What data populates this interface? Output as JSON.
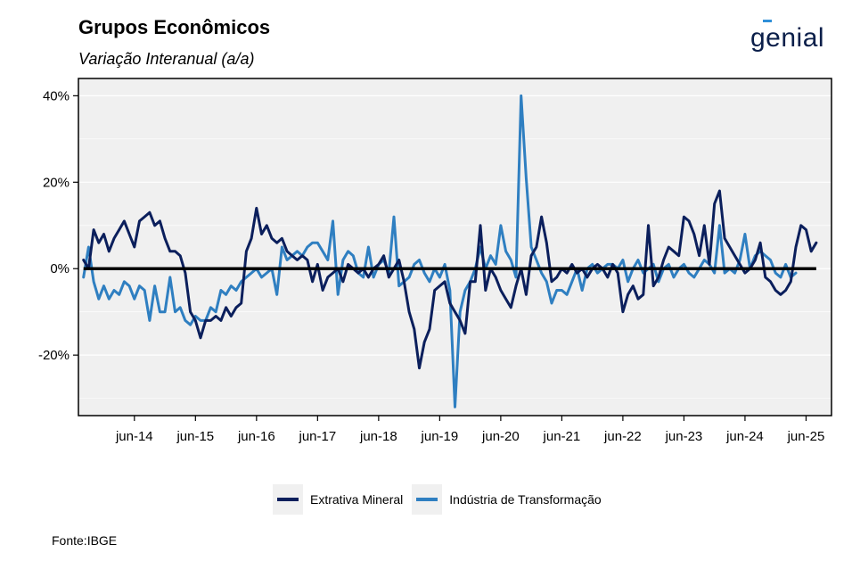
{
  "header": {
    "title": "Grupos Econômicos",
    "subtitle": "Variação Interanual (a/a)",
    "logo_text": "genial"
  },
  "footer": {
    "source": "Fonte:IBGE"
  },
  "colors": {
    "extrativa": "#0b1f5c",
    "industria": "#2f7fc1",
    "zero_line": "#000000",
    "panel": "#f0f0f0",
    "brand_accent": "#2f8fd8"
  },
  "chart_data": {
    "type": "line",
    "title": "Grupos Econômicos",
    "subtitle": "Variação Interanual (a/a)",
    "xlabel": "",
    "ylabel": "",
    "x_tick_labels": [
      "jun-14",
      "jun-15",
      "jun-16",
      "jun-17",
      "jun-18",
      "jun-19",
      "jun-20",
      "jun-21",
      "jun-22",
      "jun-23",
      "jun-24",
      "jun-25"
    ],
    "y_tick_labels": [
      "40%",
      "20%",
      "0%",
      "-20%"
    ],
    "y_ticks": [
      40,
      20,
      0,
      -20
    ],
    "ylim": [
      -34,
      44
    ],
    "x_range": [
      "2013-07",
      "2025-11"
    ],
    "grid": true,
    "legend_position": "bottom",
    "series": [
      {
        "name": "Extrativa Mineral",
        "color": "#0b1f5c",
        "start": "2013-08",
        "values": [
          2,
          0,
          9,
          6,
          8,
          4,
          7,
          9,
          11,
          8,
          5,
          11,
          12,
          13,
          10,
          11,
          7,
          4,
          4,
          3,
          -1,
          -10,
          -12,
          -16,
          -12,
          -12,
          -11,
          -12,
          -9,
          -11,
          -9,
          -8,
          4,
          7,
          14,
          8,
          10,
          7,
          6,
          7,
          4,
          3,
          2,
          3,
          2,
          -3,
          1,
          -5,
          -2,
          -1,
          0,
          -3,
          1,
          0,
          -1,
          0,
          -2,
          0,
          1,
          3,
          -2,
          0,
          2,
          -3,
          -10,
          -14,
          -23,
          -17,
          -14,
          -5,
          -4,
          -3,
          -8,
          -10,
          -12,
          -15,
          -3,
          -3,
          10,
          -5,
          0,
          -2,
          -5,
          -7,
          -9,
          -4,
          0,
          -6,
          3,
          5,
          12,
          6,
          -3,
          -2,
          0,
          -1,
          1,
          -1,
          0,
          -2,
          0,
          1,
          0,
          -2,
          1,
          -1,
          -10,
          -6,
          -4,
          -7,
          -6,
          10,
          -4,
          -2,
          2,
          5,
          4,
          3,
          12,
          11,
          8,
          3,
          10,
          1,
          15,
          18,
          7,
          5,
          3,
          1,
          -1,
          0,
          2,
          6,
          -2,
          -3,
          -5,
          -6,
          -5,
          -3,
          5,
          10,
          9,
          4,
          6
        ]
      },
      {
        "name": "Indústria de Transformação",
        "color": "#2f7fc1",
        "start": "2013-08",
        "values": [
          -2,
          5,
          -3,
          -7,
          -4,
          -7,
          -5,
          -6,
          -3,
          -4,
          -7,
          -4,
          -5,
          -12,
          -4,
          -10,
          -10,
          -2,
          -10,
          -9,
          -12,
          -13,
          -11,
          -12,
          -12,
          -9,
          -10,
          -5,
          -6,
          -4,
          -5,
          -3,
          -2,
          -1,
          0,
          -2,
          -1,
          0,
          -6,
          5,
          2,
          3,
          4,
          3,
          5,
          6,
          6,
          4,
          2,
          11,
          -6,
          2,
          4,
          3,
          -1,
          -2,
          5,
          -2,
          1,
          2,
          -1,
          12,
          -4,
          -3,
          -2,
          1,
          2,
          -1,
          -3,
          0,
          -2,
          1,
          -5,
          -32,
          -10,
          -5,
          -3,
          0,
          5,
          0,
          3,
          1,
          10,
          4,
          2,
          -2,
          40,
          21,
          5,
          2,
          -1,
          -3,
          -8,
          -5,
          -5,
          -6,
          -3,
          0,
          -5,
          0,
          1,
          -1,
          0,
          1,
          1,
          0,
          2,
          -3,
          0,
          2,
          -1,
          0,
          1,
          -3,
          0,
          1,
          -2,
          0,
          1,
          -1,
          -2,
          0,
          2,
          1,
          -1,
          10,
          -1,
          0,
          -1,
          2,
          8,
          0,
          3,
          4,
          3,
          2,
          -1,
          -2,
          1,
          -2,
          -1
        ]
      }
    ]
  }
}
